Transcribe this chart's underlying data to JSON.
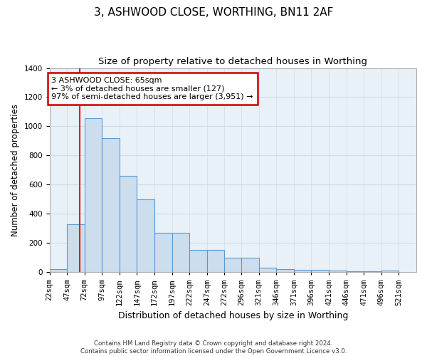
{
  "title": "3, ASHWOOD CLOSE, WORTHING, BN11 2AF",
  "subtitle": "Size of property relative to detached houses in Worthing",
  "xlabel": "Distribution of detached houses by size in Worthing",
  "ylabel": "Number of detached properties",
  "bar_edges": [
    22,
    47,
    72,
    97,
    122,
    147,
    172,
    197,
    222,
    247,
    272,
    296,
    321,
    346,
    371,
    396,
    421,
    446,
    471,
    496,
    521
  ],
  "bar_heights": [
    20,
    330,
    1055,
    920,
    660,
    500,
    270,
    270,
    150,
    150,
    100,
    100,
    30,
    20,
    15,
    15,
    10,
    5,
    5,
    10
  ],
  "bar_color": "#ccdded",
  "bar_edge_color": "#5b9bd5",
  "bg_color": "#e8f0f8",
  "grid_color": "#d0dce8",
  "red_line_x": 65,
  "annotation_text": "3 ASHWOOD CLOSE: 65sqm\n← 3% of detached houses are smaller (127)\n97% of semi-detached houses are larger (3,951) →",
  "annotation_box_color": "#ffffff",
  "annotation_border_color": "#cc0000",
  "ylim": [
    0,
    1400
  ],
  "yticks": [
    0,
    200,
    400,
    600,
    800,
    1000,
    1200,
    1400
  ],
  "footnote": "Contains HM Land Registry data © Crown copyright and database right 2024.\nContains public sector information licensed under the Open Government Licence v3.0.",
  "title_fontsize": 11,
  "subtitle_fontsize": 9.5,
  "axis_label_fontsize": 8.5,
  "tick_fontsize": 7.5,
  "fig_bg_color": "#ffffff"
}
